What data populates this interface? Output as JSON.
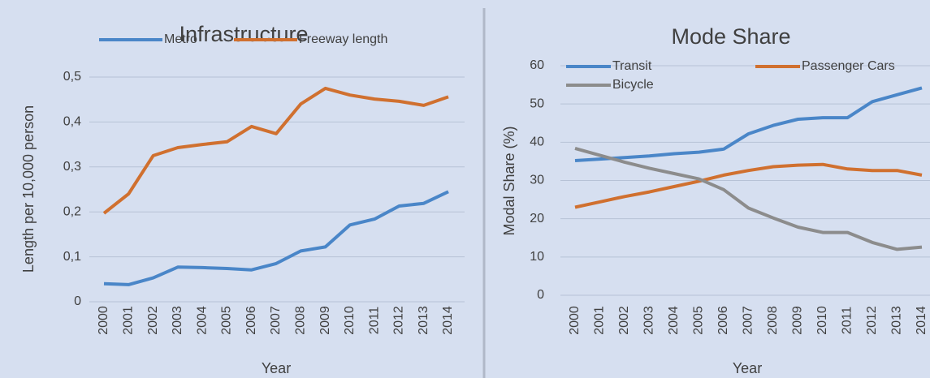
{
  "chart_data": [
    {
      "type": "line",
      "title": "Infrastructure",
      "y_label": "Length per 10,000 person",
      "x_label": "Year",
      "categories": [
        "2000",
        "2001",
        "2002",
        "2003",
        "2004",
        "2005",
        "2006",
        "2007",
        "2008",
        "2009",
        "2010",
        "2011",
        "2012",
        "2013",
        "2014"
      ],
      "series": [
        {
          "name": "Metro",
          "color": "#4a86c8",
          "values": [
            0.04,
            0.038,
            0.053,
            0.077,
            0.076,
            0.074,
            0.071,
            0.085,
            0.113,
            0.122,
            0.171,
            0.184,
            0.213,
            0.219,
            0.245
          ]
        },
        {
          "name": "Freeway length",
          "color": "#d0702f",
          "values": [
            0.197,
            0.24,
            0.325,
            0.343,
            0.35,
            0.356,
            0.39,
            0.374,
            0.44,
            0.475,
            0.46,
            0.451,
            0.446,
            0.437,
            0.456
          ]
        }
      ],
      "ylim": [
        0,
        0.5
      ],
      "yticks": [
        0,
        {
          "value": 0.1,
          "label": "0,1"
        },
        {
          "value": 0.2,
          "label": "0,2"
        },
        {
          "value": 0.3,
          "label": "0,3"
        },
        {
          "value": 0.4,
          "label": "0,4"
        },
        {
          "value": 0.5,
          "label": "0,5"
        }
      ],
      "grid": true,
      "legend": "top"
    },
    {
      "type": "line",
      "title": "Mode Share",
      "y_label": "Modal Share (%)",
      "x_label": "Year",
      "categories": [
        "2000",
        "2001",
        "2002",
        "2003",
        "2004",
        "2005",
        "2006",
        "2007",
        "2008",
        "2009",
        "2010",
        "2011",
        "2012",
        "2013",
        "2014"
      ],
      "series": [
        {
          "name": "Transit",
          "color": "#4a86c8",
          "values": [
            35.2,
            35.6,
            36,
            36.4,
            37,
            37.4,
            38.2,
            42.2,
            44.4,
            46,
            46.4,
            46.4,
            50.6,
            52.4,
            54.2
          ]
        },
        {
          "name": "Passenger Cars",
          "color": "#d0702f",
          "values": [
            23,
            24.4,
            25.8,
            27,
            28.4,
            29.8,
            31.4,
            32.6,
            33.6,
            34,
            34.2,
            33,
            32.6,
            32.6,
            31.4
          ]
        },
        {
          "name": "Bicycle",
          "color": "#8c8c8c",
          "values": [
            38.4,
            36.6,
            34.8,
            33.2,
            31.8,
            30.4,
            27.6,
            22.8,
            20.2,
            17.8,
            16.4,
            16.4,
            13.8,
            12,
            12.6
          ]
        }
      ],
      "ylim": [
        0,
        60
      ],
      "yticks": [
        0,
        10,
        20,
        30,
        40,
        50,
        60
      ],
      "grid": true,
      "legend": "top"
    }
  ]
}
